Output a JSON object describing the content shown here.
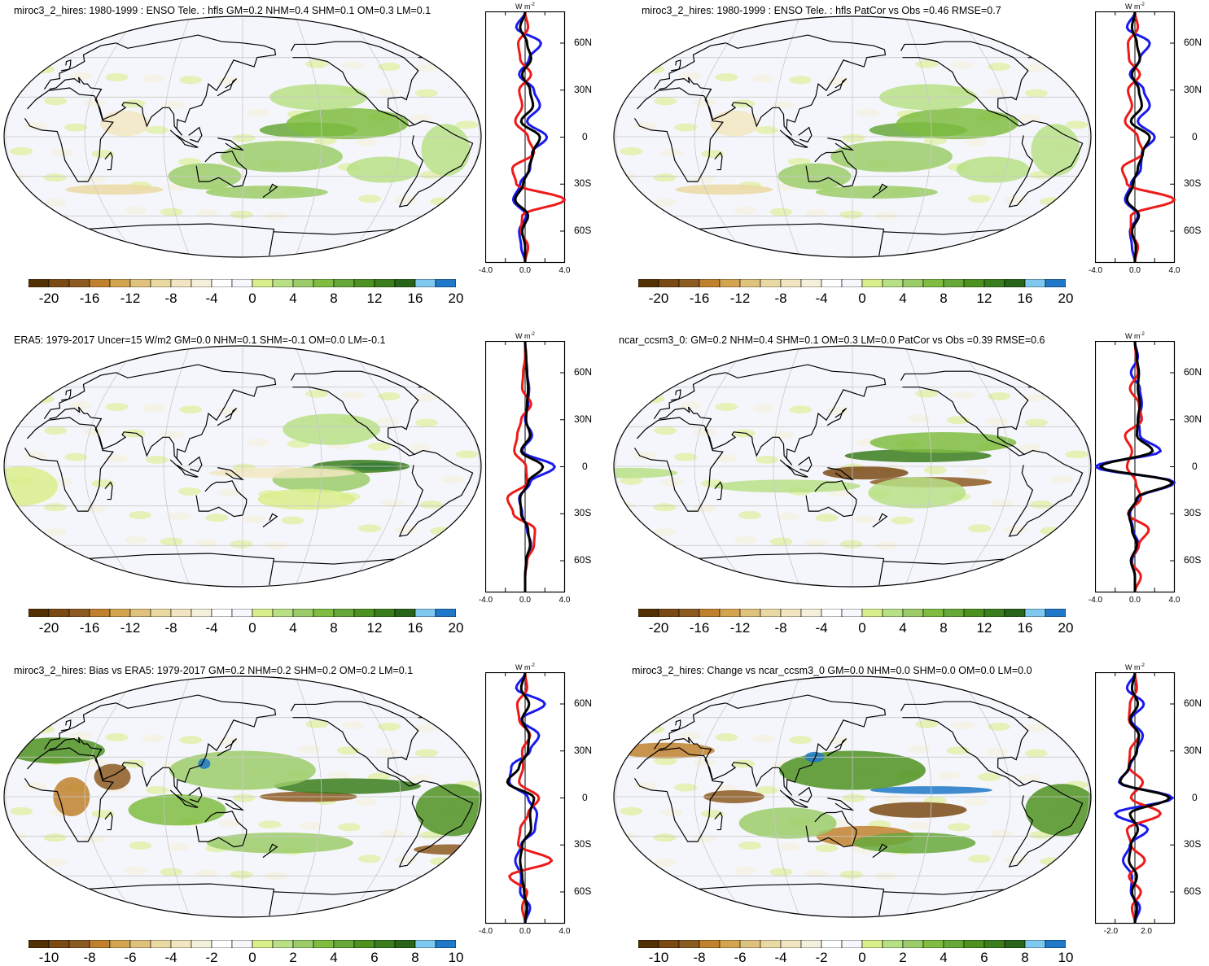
{
  "colors": {
    "palette": [
      "#543005",
      "#7a4a14",
      "#8c5b21",
      "#bf812d",
      "#d4a550",
      "#dfc27d",
      "#ebd9a3",
      "#f2e6c2",
      "#f5f0dc",
      "#ffffff",
      "#f5f7fc",
      "#d9ef8b",
      "#b8e186",
      "#9ccc6a",
      "#7fbc41",
      "#66a83a",
      "#4d9221",
      "#3a7d1c",
      "#276419",
      "#7fc8f0",
      "#1f78c8"
    ],
    "ocean": "#f5f6fb",
    "land_outline": "#000000",
    "grid": "#c8c8c8",
    "series_black": "#000000",
    "series_blue": "#1a1aee",
    "series_red": "#ee1a1a"
  },
  "panels": [
    {
      "id": "p1",
      "title": "miroc3_2_hires: 1980-1999 : ENSO Tele. : hfls GM=0.2 NHM=0.4 SHM=0.1 OM=0.3 LM=0.1",
      "colorbar_labels": [
        "-20",
        "-16",
        "-12",
        "-8",
        "-4",
        "0",
        "4",
        "8",
        "12",
        "16",
        "20"
      ],
      "units": "W m",
      "units_sup": "-2",
      "lat_labels": [
        "60N",
        "30N",
        "0",
        "30S",
        "60S"
      ],
      "xtick_labels": [
        "-4.0",
        "0.0",
        "4.0"
      ]
    },
    {
      "id": "p2",
      "title": "miroc3_2_hires: 1980-1999 : ENSO Tele. : hfls PatCor vs Obs =0.46 RMSE=0.7",
      "colorbar_labels": [
        "-20",
        "-16",
        "-12",
        "-8",
        "-4",
        "0",
        "4",
        "8",
        "12",
        "16",
        "20"
      ],
      "units": "W m",
      "units_sup": "-2",
      "lat_labels": [
        "60N",
        "30N",
        "0",
        "30S",
        "60S"
      ],
      "xtick_labels": [
        "-4.0",
        "0.0",
        "4.0"
      ]
    },
    {
      "id": "p3",
      "title": "ERA5: 1979-2017 Uncer=15 W/m2 GM=0.0 NHM=0.1 SHM=-0.1 OM=0.0 LM=-0.1",
      "colorbar_labels": [
        "-20",
        "-16",
        "-12",
        "-8",
        "-4",
        "0",
        "4",
        "8",
        "12",
        "16",
        "20"
      ],
      "units": "W m",
      "units_sup": "-2",
      "lat_labels": [
        "60N",
        "30N",
        "0",
        "30S",
        "60S"
      ],
      "xtick_labels": [
        "-4.0",
        "0.0",
        "4.0"
      ]
    },
    {
      "id": "p4",
      "title": "ncar_ccsm3_0: GM=0.2 NHM=0.4 SHM=0.1 OM=0.3 LM=0.0 PatCor vs Obs =0.39 RMSE=0.6",
      "colorbar_labels": [
        "-20",
        "-16",
        "-12",
        "-8",
        "-4",
        "0",
        "4",
        "8",
        "12",
        "16",
        "20"
      ],
      "units": "W m",
      "units_sup": "-2",
      "lat_labels": [
        "60N",
        "30N",
        "0",
        "30S",
        "60S"
      ],
      "xtick_labels": [
        "-4.0",
        "0.0",
        "4.0"
      ]
    },
    {
      "id": "p5",
      "title": "miroc3_2_hires: Bias vs ERA5: 1979-2017 GM=0.2 NHM=0.2 SHM=0.2 OM=0.2 LM=0.1",
      "colorbar_labels": [
        "-10",
        "-8",
        "-6",
        "-4",
        "-2",
        "0",
        "2",
        "4",
        "6",
        "8",
        "10"
      ],
      "units": "W m",
      "units_sup": "-2",
      "lat_labels": [
        "60N",
        "30N",
        "0",
        "30S",
        "60S"
      ],
      "xtick_labels": [
        "-4.0",
        "0.0",
        "4.0"
      ]
    },
    {
      "id": "p6",
      "title": "miroc3_2_hires: Change vs ncar_ccsm3_0 GM=0.0 NHM=0.0 SHM=0.0 OM=0.0 LM=0.0",
      "colorbar_labels": [
        "-10",
        "-8",
        "-6",
        "-4",
        "-2",
        "0",
        "2",
        "4",
        "6",
        "8",
        "10"
      ],
      "units": "W m",
      "units_sup": "-2",
      "lat_labels": [
        "60N",
        "30N",
        "0",
        "30S",
        "60S"
      ],
      "xtick_labels": [
        "-2.0",
        "2.0"
      ]
    }
  ],
  "chart_data": [
    {
      "type": "line",
      "panel": "p1",
      "xlim": [
        -4,
        4
      ],
      "ylim": [
        -80,
        80
      ],
      "lat": [
        80,
        70,
        60,
        50,
        40,
        30,
        20,
        10,
        0,
        -10,
        -20,
        -30,
        -40,
        -50,
        -60,
        -70,
        -80
      ],
      "series": [
        {
          "color": "black",
          "values": [
            0,
            -0.5,
            0.2,
            0.6,
            -0.3,
            0.5,
            0.8,
            -0.4,
            1.5,
            0.8,
            0.4,
            -0.2,
            -1.0,
            0.3,
            -0.3,
            0.0,
            0
          ]
        },
        {
          "color": "blue",
          "values": [
            0,
            -0.9,
            1.6,
            0.4,
            -0.6,
            0.9,
            1.5,
            0.2,
            2.2,
            0.7,
            0.5,
            -0.5,
            -1.2,
            0.1,
            -0.6,
            -0.4,
            0
          ]
        },
        {
          "color": "red",
          "values": [
            0,
            0.3,
            -0.7,
            -0.5,
            0.6,
            -0.6,
            -0.3,
            -1.0,
            0.3,
            0.9,
            -1.3,
            -0.9,
            4.0,
            -0.3,
            -0.4,
            0.3,
            0
          ]
        }
      ]
    },
    {
      "type": "line",
      "panel": "p2",
      "xlim": [
        -4,
        4
      ],
      "ylim": [
        -80,
        80
      ],
      "lat": [
        80,
        70,
        60,
        50,
        40,
        30,
        20,
        10,
        0,
        -10,
        -20,
        -30,
        -40,
        -50,
        -60,
        -70,
        -80
      ],
      "series": [
        {
          "color": "black",
          "values": [
            0,
            -0.3,
            0.2,
            0.5,
            -0.3,
            0.4,
            0.7,
            -0.4,
            1.5,
            0.8,
            0.3,
            -0.2,
            -0.8,
            0.4,
            -0.3,
            0.1,
            0
          ]
        },
        {
          "color": "blue",
          "values": [
            0,
            -0.8,
            1.5,
            0.5,
            -0.5,
            0.9,
            1.5,
            0.3,
            2.0,
            0.7,
            0.6,
            -0.4,
            -1.0,
            0.3,
            -0.5,
            -0.3,
            0
          ]
        },
        {
          "color": "red",
          "values": [
            0,
            0.3,
            -0.7,
            -0.6,
            0.5,
            -0.7,
            -0.3,
            -1.0,
            0.3,
            0.8,
            -1.3,
            -0.8,
            4.0,
            -0.4,
            -0.4,
            0.3,
            0
          ]
        }
      ]
    },
    {
      "type": "line",
      "panel": "p3",
      "xlim": [
        -4,
        4
      ],
      "ylim": [
        -80,
        80
      ],
      "lat": [
        80,
        70,
        60,
        50,
        40,
        30,
        20,
        10,
        0,
        -10,
        -20,
        -30,
        -40,
        -50,
        -60,
        -70,
        -80
      ],
      "series": [
        {
          "color": "black",
          "values": [
            0,
            0.1,
            0.2,
            0.3,
            0.2,
            0.1,
            0.5,
            -0.4,
            1.8,
            0.3,
            -0.5,
            -0.4,
            0.3,
            0.5,
            0.1,
            0.0,
            0
          ]
        },
        {
          "color": "blue",
          "values": [
            0,
            0.1,
            0.2,
            0.4,
            0.3,
            0.0,
            0.7,
            -0.3,
            3.0,
            0.5,
            -0.6,
            -0.3,
            0.2,
            0.6,
            0.1,
            0.0,
            0
          ]
        },
        {
          "color": "red",
          "values": [
            0,
            0.0,
            -0.2,
            -0.3,
            0.6,
            -0.4,
            -0.8,
            -1.1,
            0.1,
            0.2,
            -1.8,
            -1.2,
            1.0,
            0.9,
            0.2,
            0.0,
            0
          ]
        }
      ]
    },
    {
      "type": "line",
      "panel": "p4",
      "xlim": [
        -4,
        4
      ],
      "ylim": [
        -80,
        80
      ],
      "lat": [
        80,
        70,
        60,
        50,
        40,
        30,
        20,
        10,
        0,
        -10,
        -20,
        -30,
        -40,
        -50,
        -60,
        -70,
        -80
      ],
      "series": [
        {
          "color": "black",
          "values": [
            0,
            0.2,
            0.4,
            0.3,
            0.5,
            0.3,
            0.2,
            1.8,
            -3.5,
            3.8,
            0.2,
            -0.6,
            -0.3,
            0.2,
            -0.4,
            0.0,
            0
          ]
        },
        {
          "color": "blue",
          "values": [
            0,
            0.3,
            -0.4,
            0.5,
            0.7,
            0.4,
            0.5,
            2.6,
            -4.0,
            4.0,
            0.3,
            -0.5,
            -0.2,
            0.4,
            -0.3,
            0.0,
            0
          ]
        },
        {
          "color": "red",
          "values": [
            0,
            0.1,
            0.3,
            -0.5,
            0.4,
            0.7,
            -1.0,
            -0.3,
            -0.8,
            0.1,
            0.6,
            -0.7,
            1.4,
            0.4,
            -0.4,
            0.6,
            0
          ]
        }
      ]
    },
    {
      "type": "line",
      "panel": "p5",
      "xlim": [
        -4,
        4
      ],
      "ylim": [
        -80,
        80
      ],
      "lat": [
        80,
        70,
        60,
        50,
        40,
        30,
        20,
        10,
        0,
        -10,
        -20,
        -30,
        -40,
        -50,
        -60,
        -70,
        -80
      ],
      "series": [
        {
          "color": "black",
          "values": [
            0,
            -0.4,
            0.4,
            -0.3,
            0.4,
            0.3,
            -0.6,
            -1.8,
            0.9,
            0.5,
            0.6,
            -0.3,
            -0.5,
            -0.3,
            -0.1,
            0.2,
            0
          ]
        },
        {
          "color": "blue",
          "values": [
            0,
            -0.9,
            2.0,
            -0.4,
            1.4,
            0.5,
            -1.4,
            -1.6,
            0.3,
            1.2,
            1.0,
            -0.4,
            -1.0,
            -0.4,
            -0.5,
            0.5,
            0
          ]
        },
        {
          "color": "red",
          "values": [
            0,
            0.2,
            -0.8,
            -0.6,
            0.5,
            -0.3,
            -0.2,
            -0.6,
            1.4,
            0.3,
            -0.5,
            -0.7,
            2.7,
            -1.6,
            0.2,
            -0.3,
            0
          ]
        }
      ]
    },
    {
      "type": "line",
      "panel": "p6",
      "xlim": [
        -4,
        4
      ],
      "ylim": [
        -80,
        80
      ],
      "lat": [
        80,
        70,
        60,
        50,
        40,
        30,
        20,
        10,
        0,
        -10,
        -20,
        -30,
        -40,
        -50,
        -60,
        -70,
        -80
      ],
      "series": [
        {
          "color": "black",
          "values": [
            0,
            -0.3,
            0.3,
            -0.5,
            0.4,
            0.2,
            -0.6,
            -1.5,
            3.5,
            -0.5,
            0.3,
            -0.4,
            -0.6,
            0.2,
            -0.3,
            0.2,
            0
          ]
        },
        {
          "color": "blue",
          "values": [
            0,
            -0.8,
            0.9,
            -0.4,
            0.8,
            0.2,
            -0.5,
            -1.6,
            3.8,
            -2.0,
            1.3,
            -0.5,
            -1.2,
            -0.3,
            -0.4,
            0.5,
            0
          ]
        },
        {
          "color": "red",
          "values": [
            0,
            0.2,
            -0.5,
            -0.6,
            0.4,
            -0.5,
            -0.6,
            0.8,
            -0.4,
            2.6,
            -0.8,
            -0.4,
            1.0,
            -0.6,
            0.6,
            -0.3,
            0
          ]
        }
      ]
    }
  ]
}
